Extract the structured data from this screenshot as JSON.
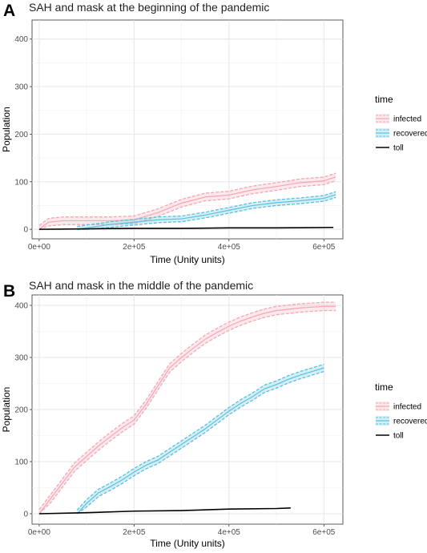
{
  "chart_data": [
    {
      "panel_label": "A",
      "title": "SAH and mask at the beginning of the pandemic",
      "type": "line",
      "xlabel": "Time (Unity units)",
      "ylabel": "Population",
      "xlim": [
        -15000,
        640000
      ],
      "ylim": [
        -20,
        440
      ],
      "x_ticks": [
        0,
        200000,
        400000,
        600000
      ],
      "x_tick_labels": [
        "0e+00",
        "2e+05",
        "4e+05",
        "6e+05"
      ],
      "y_ticks": [
        0,
        100,
        200,
        300,
        400
      ],
      "y_tick_labels": [
        "0",
        "100",
        "200",
        "300",
        "400"
      ],
      "grid": true,
      "legend": {
        "title": "time",
        "position": "right",
        "entries": [
          "infected",
          "recovered",
          "toll"
        ]
      },
      "series": [
        {
          "name": "infected",
          "color": "#f4a6b4",
          "band": 8,
          "x": [
            0,
            20000,
            50000,
            100000,
            150000,
            200000,
            250000,
            300000,
            350000,
            400000,
            450000,
            500000,
            550000,
            600000,
            625000
          ],
          "y": [
            0,
            15,
            18,
            18,
            18,
            20,
            35,
            55,
            68,
            72,
            83,
            90,
            98,
            102,
            110
          ]
        },
        {
          "name": "recovered",
          "color": "#5bc0de",
          "band": 6,
          "x": [
            80000,
            100000,
            150000,
            200000,
            250000,
            300000,
            350000,
            400000,
            450000,
            500000,
            550000,
            600000,
            625000
          ],
          "y": [
            0,
            3,
            10,
            15,
            20,
            22,
            30,
            40,
            50,
            56,
            60,
            65,
            73
          ]
        },
        {
          "name": "toll",
          "color": "#000000",
          "band": 0,
          "x": [
            0,
            100000,
            200000,
            300000,
            400000,
            500000,
            620000
          ],
          "y": [
            0,
            1,
            2,
            2,
            3,
            3,
            4
          ]
        }
      ]
    },
    {
      "panel_label": "B",
      "title": "SAH and mask in the middle of the pandemic",
      "type": "line",
      "xlabel": "Time (Unity units)",
      "ylabel": "Population",
      "xlim": [
        -15000,
        640000
      ],
      "ylim": [
        -20,
        420
      ],
      "x_ticks": [
        0,
        200000,
        400000,
        600000
      ],
      "x_tick_labels": [
        "0e+00",
        "2e+05",
        "4e+05",
        "6e+05"
      ],
      "y_ticks": [
        0,
        100,
        200,
        300,
        400
      ],
      "y_tick_labels": [
        "0",
        "100",
        "200",
        "300",
        "400"
      ],
      "grid": true,
      "legend": {
        "title": "time",
        "position": "right",
        "entries": [
          "infected",
          "recovered",
          "toll"
        ]
      },
      "series": [
        {
          "name": "infected",
          "color": "#f4a6b4",
          "band": 8,
          "x": [
            0,
            25000,
            50000,
            75000,
            100000,
            125000,
            150000,
            175000,
            200000,
            225000,
            250000,
            275000,
            300000,
            325000,
            350000,
            375000,
            400000,
            425000,
            450000,
            475000,
            500000,
            550000,
            600000,
            625000
          ],
          "y": [
            0,
            30,
            60,
            90,
            110,
            130,
            148,
            165,
            180,
            210,
            245,
            280,
            300,
            318,
            335,
            348,
            360,
            370,
            378,
            385,
            390,
            395,
            398,
            398
          ]
        },
        {
          "name": "recovered",
          "color": "#5bc0de",
          "band": 7,
          "x": [
            80000,
            100000,
            125000,
            150000,
            175000,
            200000,
            225000,
            250000,
            275000,
            300000,
            325000,
            350000,
            375000,
            400000,
            425000,
            450000,
            475000,
            500000,
            525000,
            550000,
            575000,
            600000
          ],
          "y": [
            0,
            20,
            40,
            52,
            65,
            80,
            93,
            103,
            118,
            133,
            148,
            163,
            180,
            197,
            212,
            225,
            240,
            248,
            258,
            266,
            273,
            280
          ]
        },
        {
          "name": "toll",
          "color": "#000000",
          "band": 0,
          "x": [
            0,
            100000,
            200000,
            300000,
            400000,
            500000,
            530000
          ],
          "y": [
            0,
            2,
            5,
            6,
            9,
            10,
            11
          ]
        }
      ]
    }
  ]
}
